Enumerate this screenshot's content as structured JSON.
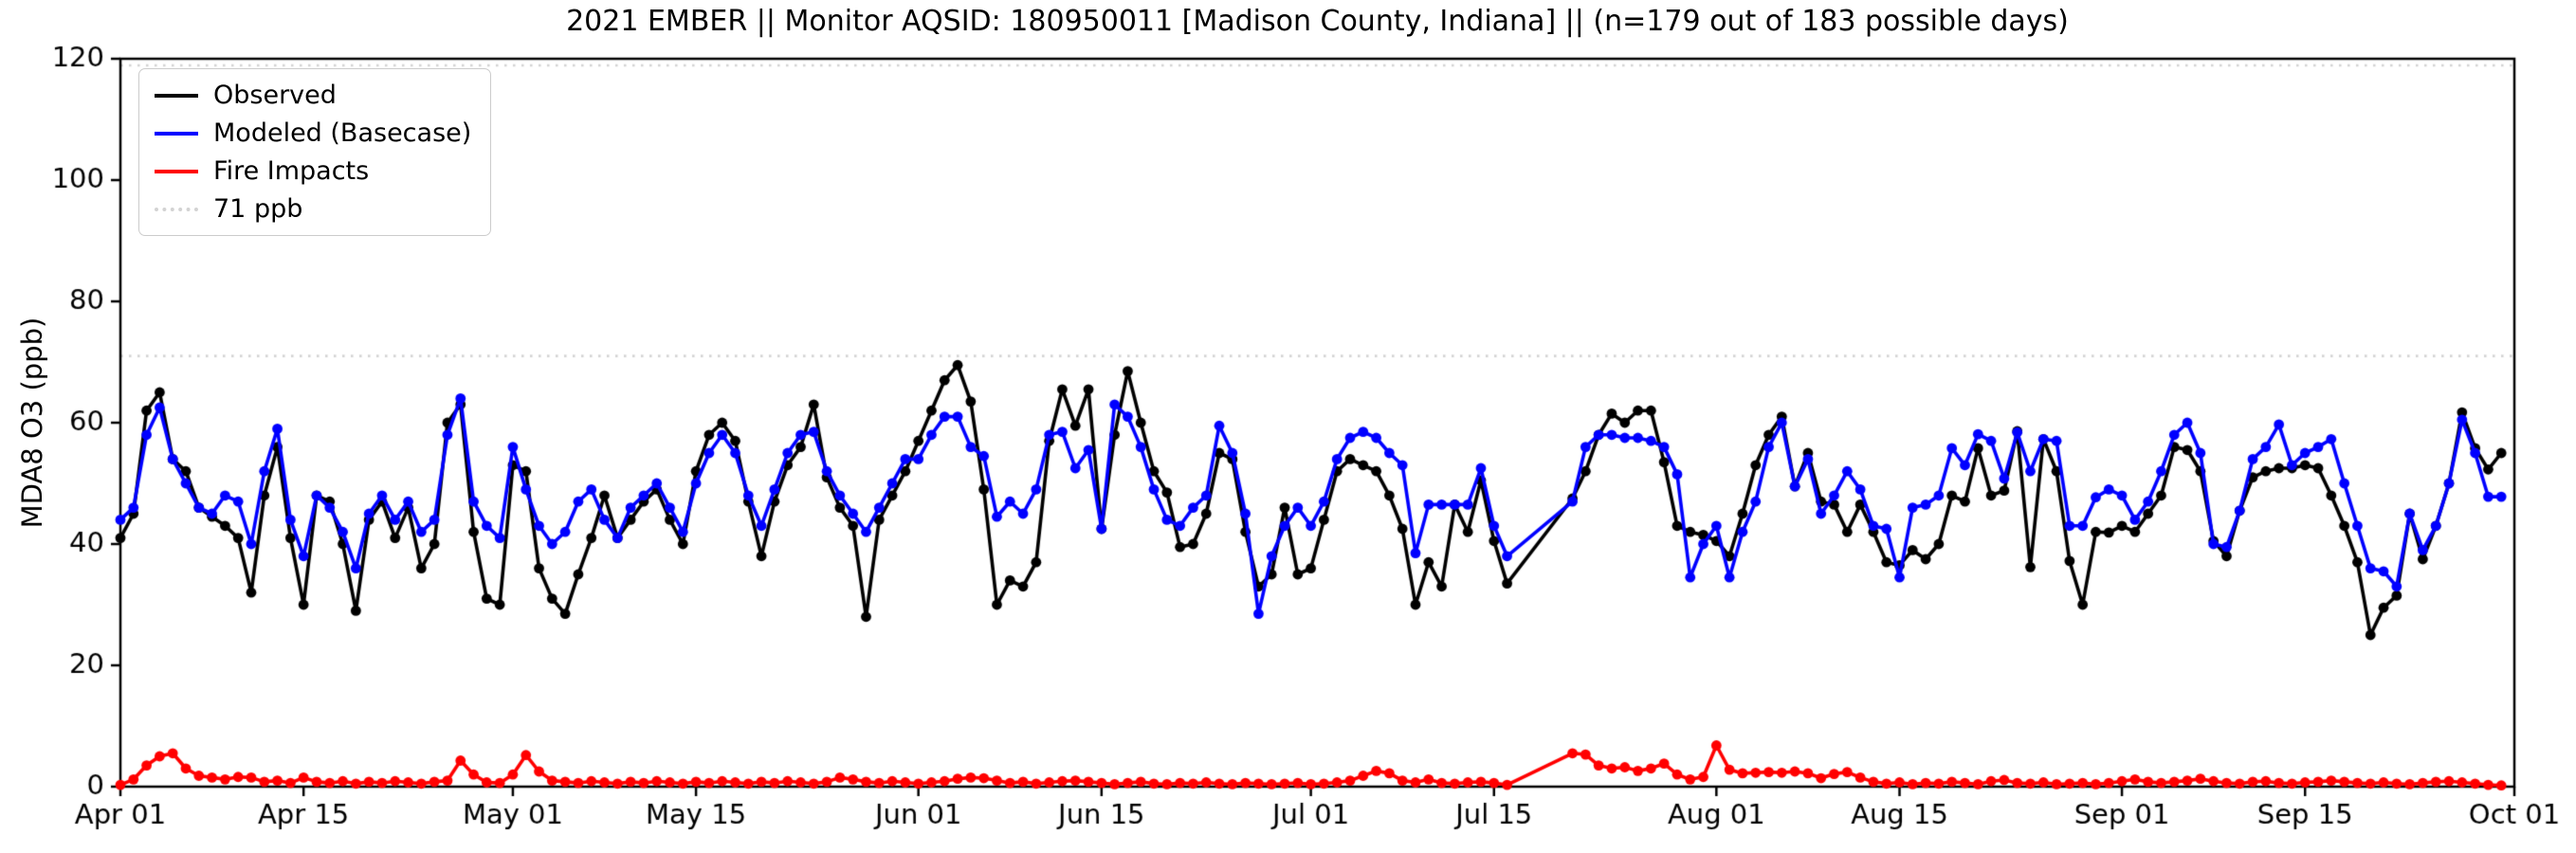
{
  "title": "2021 EMBER || Monitor AQSID: 180950011 [Madison County, Indiana] || (n=179 out of 183 possible days)",
  "ylabel": "MDA8 O3 (ppb)",
  "colors": {
    "observed": "#000000",
    "modeled": "#0000ff",
    "fire": "#ff0000",
    "threshold": "#d3d3d3",
    "legend_border": "#cccccc",
    "axes": "#000000"
  },
  "legend": [
    {
      "label": "Observed",
      "color": "#000000",
      "style": "solid"
    },
    {
      "label": "Modeled (Basecase)",
      "color": "#0000ff",
      "style": "solid"
    },
    {
      "label": "Fire Impacts",
      "color": "#ff0000",
      "style": "solid"
    },
    {
      "label": "71 ppb",
      "color": "#d3d3d3",
      "style": "dotted"
    }
  ],
  "chart_data": {
    "type": "line",
    "title": "2021 EMBER || Monitor AQSID: 180950011 [Madison County, Indiana] || (n=179 out of 183 possible days)",
    "xlabel": "",
    "ylabel": "MDA8 O3 (ppb)",
    "ylim": [
      0,
      120
    ],
    "yticks": [
      0,
      20,
      40,
      60,
      80,
      100,
      120
    ],
    "x_days_total": 184,
    "x_start_date": "Apr 01",
    "x_end_date": "Oct 01",
    "grid": false,
    "legend_position": "upper left",
    "missing_days": [
      "Jul 17",
      "Jul 18",
      "Jul 19",
      "Jul 20"
    ],
    "n_observed_days": 179,
    "n_possible_days": 183,
    "xticks": [
      {
        "label": "Apr 01",
        "day": 1
      },
      {
        "label": "Apr 15",
        "day": 15
      },
      {
        "label": "May 01",
        "day": 31
      },
      {
        "label": "May 15",
        "day": 45
      },
      {
        "label": "Jun 01",
        "day": 62
      },
      {
        "label": "Jun 15",
        "day": 76
      },
      {
        "label": "Jul 01",
        "day": 92
      },
      {
        "label": "Jul 15",
        "day": 106
      },
      {
        "label": "Aug 01",
        "day": 123
      },
      {
        "label": "Aug 15",
        "day": 137
      },
      {
        "label": "Sep 01",
        "day": 154
      },
      {
        "label": "Sep 15",
        "day": 168
      },
      {
        "label": "Oct 01",
        "day": 184
      }
    ],
    "reference_lines": [
      {
        "value": 71,
        "label": "71 ppb",
        "color": "#d3d3d3",
        "style": "dotted"
      },
      {
        "value": 120,
        "label": "",
        "color": "#d3d3d3",
        "style": "dotted"
      }
    ],
    "series": [
      {
        "name": "Observed",
        "color": "#000000",
        "marker": "circle",
        "values": [
          41,
          45,
          62,
          65,
          54,
          52,
          46,
          44.5,
          43,
          41,
          32,
          48,
          56,
          41,
          30,
          48,
          47,
          40,
          29,
          44,
          47,
          41,
          46,
          36,
          40,
          60,
          63,
          42,
          31,
          30,
          53,
          52,
          36,
          31,
          28.5,
          35,
          41,
          48,
          41,
          44,
          47,
          49,
          44,
          40,
          52,
          58,
          60,
          57,
          47,
          38,
          47,
          53,
          56,
          63,
          51,
          46,
          43,
          28,
          44,
          48,
          52,
          57,
          62,
          67,
          69.5,
          63.5,
          49,
          30,
          34,
          33,
          37,
          57,
          65.5,
          59.5,
          65.5,
          42.5,
          58,
          68.5,
          60,
          52,
          48.5,
          39.5,
          40,
          45,
          55,
          54,
          42,
          33,
          35,
          46,
          35,
          36,
          44,
          52,
          54,
          53,
          52,
          48,
          42.5,
          30,
          37,
          33,
          46.5,
          42,
          50.5,
          40.5,
          33.5,
          null,
          null,
          null,
          null,
          47.5,
          52,
          58,
          61.5,
          60,
          62,
          62,
          53.5,
          43,
          42,
          41.5,
          40.5,
          38,
          45,
          53,
          58,
          61,
          49.5,
          55,
          47,
          46.5,
          42,
          46.5,
          42,
          37,
          36.5,
          39,
          37.5,
          40,
          48,
          47,
          55.8,
          48,
          48.8,
          58.6,
          36.2,
          57.3,
          52,
          37.2,
          30,
          42,
          41.9,
          43,
          42,
          45,
          48,
          56,
          55.5,
          52,
          40.5,
          38,
          45.5,
          51,
          52,
          52.5,
          52.5,
          53,
          52.5,
          48,
          43,
          37,
          25,
          29.5,
          31.5,
          45,
          37.5,
          43,
          50,
          61.7,
          55.8,
          52.3,
          55
        ]
      },
      {
        "name": "Modeled (Basecase)",
        "color": "#0000ff",
        "marker": "circle",
        "values": [
          44,
          46,
          58,
          62.5,
          54,
          50,
          46,
          45,
          48,
          47,
          40,
          52,
          59,
          44,
          38,
          48,
          46,
          42,
          36,
          45,
          48,
          44,
          47,
          42,
          44,
          58,
          64,
          47,
          43,
          41,
          56,
          49,
          43,
          40,
          42,
          47,
          49,
          44,
          41,
          46,
          48,
          50,
          46,
          42,
          50,
          55,
          58,
          55,
          48,
          43,
          49,
          55,
          58,
          58.5,
          52,
          48,
          45,
          42,
          46,
          50,
          54,
          54,
          58,
          61,
          61,
          56,
          54.5,
          44.5,
          47,
          45,
          49,
          58,
          58.5,
          52.5,
          55.5,
          42.5,
          63,
          61,
          56,
          49,
          44,
          43,
          46,
          48,
          59.5,
          55,
          45,
          28.5,
          38,
          43,
          46,
          43,
          47,
          54,
          57.5,
          58.5,
          57.5,
          55,
          53,
          38.5,
          46.5,
          46.5,
          46.5,
          46.5,
          52.5,
          43,
          38,
          null,
          null,
          null,
          null,
          47,
          56,
          58,
          58,
          57.5,
          57.5,
          57,
          56,
          51.5,
          34.5,
          40,
          43,
          34.5,
          42,
          47,
          56,
          60,
          49.5,
          54,
          45,
          48,
          52,
          49,
          43,
          42.5,
          34.5,
          46,
          46.5,
          48,
          55.8,
          53,
          58.1,
          57,
          50.8,
          58.4,
          52,
          57.3,
          57,
          43,
          43,
          47.7,
          49,
          48,
          44,
          47,
          52,
          58,
          60,
          55,
          40,
          39.5,
          45.5,
          54,
          56,
          59.7,
          53,
          55,
          56,
          57.3,
          50,
          43,
          36,
          35.5,
          33,
          45,
          39,
          43,
          50,
          60.5,
          55,
          47.8,
          47.8
        ]
      },
      {
        "name": "Fire Impacts",
        "color": "#ff0000",
        "marker": "circle",
        "values": [
          0.3,
          1.2,
          3.5,
          5.0,
          5.5,
          3.0,
          1.8,
          1.5,
          1.2,
          1.6,
          1.5,
          0.8,
          1.0,
          0.6,
          1.5,
          0.8,
          0.6,
          0.9,
          0.5,
          0.8,
          0.6,
          0.9,
          0.7,
          0.5,
          0.8,
          1.0,
          4.3,
          2.0,
          0.7,
          0.6,
          2.0,
          5.2,
          2.5,
          1.0,
          0.8,
          0.6,
          0.9,
          0.7,
          0.5,
          0.8,
          0.6,
          0.9,
          0.7,
          0.5,
          0.8,
          0.6,
          0.9,
          0.7,
          0.5,
          0.8,
          0.6,
          0.9,
          0.7,
          0.5,
          0.8,
          1.5,
          1.2,
          0.8,
          0.6,
          0.9,
          0.7,
          0.5,
          0.7,
          0.9,
          1.3,
          1.5,
          1.4,
          1.0,
          0.6,
          0.8,
          0.5,
          0.7,
          0.9,
          1.0,
          0.8,
          0.6,
          0.4,
          0.6,
          0.8,
          0.5,
          0.4,
          0.6,
          0.5,
          0.7,
          0.5,
          0.4,
          0.6,
          0.5,
          0.4,
          0.5,
          0.6,
          0.4,
          0.5,
          0.7,
          1.0,
          1.8,
          2.6,
          2.2,
          1.0,
          0.7,
          1.2,
          0.6,
          0.5,
          0.7,
          0.8,
          0.6,
          0.3,
          null,
          null,
          null,
          null,
          5.5,
          5.3,
          3.5,
          3.0,
          3.2,
          2.6,
          3.0,
          3.8,
          2.0,
          1.2,
          1.6,
          6.8,
          2.8,
          2.2,
          2.3,
          2.4,
          2.3,
          2.5,
          2.2,
          1.4,
          2.1,
          2.4,
          1.5,
          0.8,
          0.5,
          0.7,
          0.4,
          0.6,
          0.5,
          0.8,
          0.6,
          0.4,
          0.9,
          1.1,
          0.6,
          0.5,
          0.7,
          0.4,
          0.5,
          0.6,
          0.4,
          0.6,
          0.9,
          1.2,
          0.8,
          0.6,
          0.8,
          1.0,
          1.3,
          0.9,
          0.6,
          0.5,
          0.8,
          0.9,
          0.6,
          0.5,
          0.7,
          0.8,
          1.0,
          0.8,
          0.6,
          0.5,
          0.7,
          0.5,
          0.4,
          0.6,
          0.8,
          0.9,
          0.7,
          0.5,
          0.3,
          0.2
        ]
      }
    ]
  }
}
